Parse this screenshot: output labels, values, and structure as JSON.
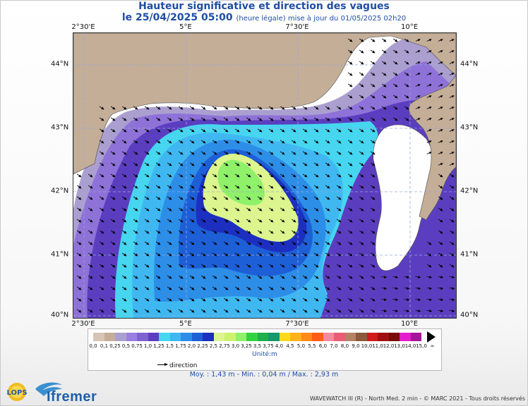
{
  "title": {
    "line1": "Hauteur significative et direction des vagues",
    "line2_main": "le 25/04/2025 05:00",
    "line2_small": "(heure légale) mise à jour du 01/05/2025 02h20"
  },
  "axes": {
    "lon_ticks": [
      "2°30'E",
      "5°E",
      "7°30'E",
      "10°E"
    ],
    "lat_ticks": [
      "44°N",
      "43°N",
      "42°N",
      "41°N",
      "40°N"
    ]
  },
  "colors": {
    "land": "#c4ae98",
    "sea": "#ffffff",
    "contour": "#4a4a4a",
    "grid": "#9aa6d8"
  },
  "scale": {
    "labels": [
      "0,0",
      "0,1",
      "0,25",
      "0,5",
      "0,75",
      "1,0",
      "1,25",
      "1,5",
      "1,75",
      "2,0",
      "2,25",
      "2,5",
      "2,75",
      "3,0",
      "3,25",
      "3,5",
      "3,75",
      "4,0",
      "4,5",
      "5,0",
      "5,5",
      "6,0",
      "7,0",
      "8,0",
      "9,0",
      "10,0",
      "11,0",
      "12,0",
      "13,0",
      "14,0",
      "15,0",
      "∞"
    ],
    "colors": [
      "#d6c5b4",
      "#c4ae98",
      "#ab9fd0",
      "#9a7ee0",
      "#7f62cf",
      "#5b3ec0",
      "#46d6f0",
      "#3fb8f2",
      "#2d8ee8",
      "#1d5fd6",
      "#1c2fc0",
      "#ddf58e",
      "#cdf26e",
      "#8ff06a",
      "#33d340",
      "#1fb04c",
      "#14986e",
      "#ffd91a",
      "#ffb11a",
      "#ff8a18",
      "#ff5c14",
      "#f48aa0",
      "#eb5d74",
      "#b58266",
      "#8b5a3c",
      "#d11a1a",
      "#a01010",
      "#780a0a",
      "#e21ecc",
      "#a5149b"
    ],
    "unit": "Unité:m"
  },
  "legend": {
    "direction_label": "direction"
  },
  "stats": "Moy. : 1,43 m  -  Min. : 0,04 m / Max. : 2,93 m",
  "footer": "WAVEWATCH III (R) - North Med. 2 min - © MARC 2021 - Tous droits réservés",
  "logos": {
    "lops": "LOPS",
    "ifremer": "Ifremer"
  }
}
